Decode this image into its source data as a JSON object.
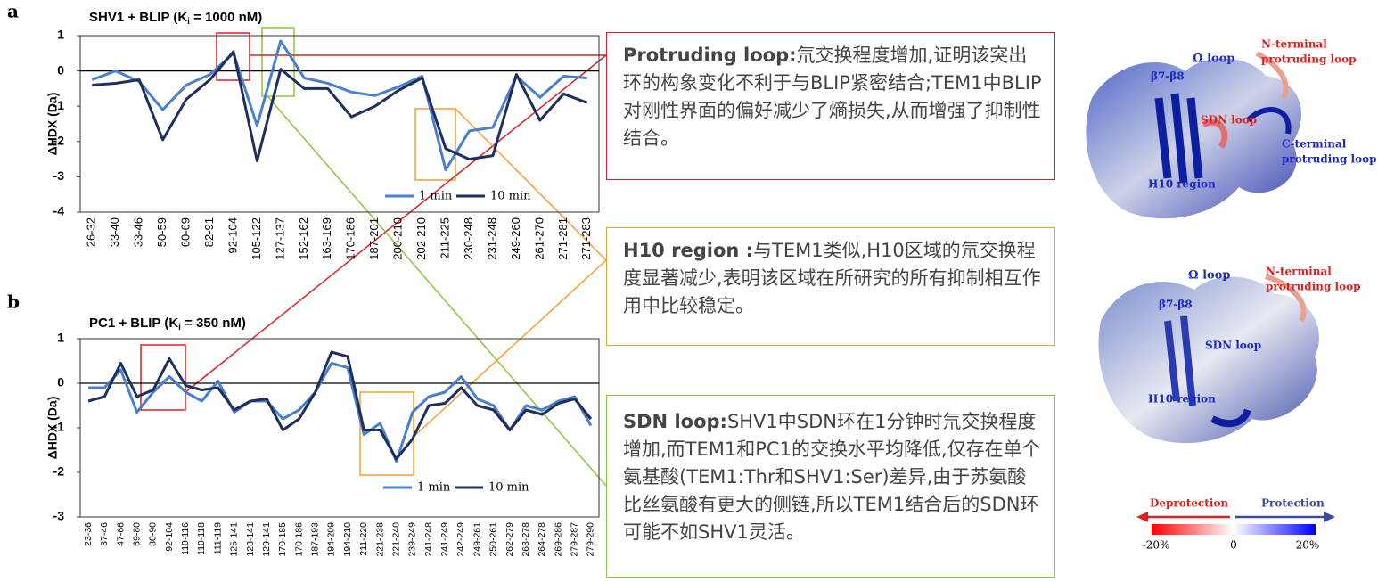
{
  "panels": [
    "a",
    "b"
  ],
  "chart_data": [
    {
      "type": "line",
      "title": "SHV1 + BLIP (K",
      "title_sub": "i",
      "title_end": " = 1000 nM)",
      "y_label": "ΔHDX (Da)",
      "categories": [
        "26-32",
        "33-40",
        "33-46",
        "50-59",
        "60-69",
        "82-91",
        "92-104",
        "105-122",
        "127-137",
        "152-162",
        "163-169",
        "170-186",
        "187-201",
        "200-210",
        "202-210",
        "211-225",
        "230-248",
        "231-248",
        "249-260",
        "261-270",
        "271-281",
        "271-283"
      ],
      "series": [
        {
          "name": "1 min",
          "color": "#4a7fd0",
          "values": [
            -0.25,
            0.0,
            -0.3,
            -1.1,
            -0.4,
            -0.1,
            0.5,
            -1.55,
            0.85,
            -0.2,
            -0.35,
            -0.6,
            -0.7,
            -0.45,
            -0.15,
            -2.8,
            -1.7,
            -1.6,
            -0.15,
            -0.75,
            -0.15,
            -0.2
          ]
        },
        {
          "name": "10 min",
          "color": "#1f2f5c",
          "values": [
            -0.4,
            -0.35,
            -0.25,
            -1.95,
            -0.8,
            -0.25,
            0.55,
            -2.55,
            0.05,
            -0.5,
            -0.5,
            -1.3,
            -1.0,
            -0.55,
            -0.2,
            -2.2,
            -2.5,
            -2.4,
            -0.1,
            -1.4,
            -0.65,
            -0.9
          ]
        }
      ],
      "ylim": [
        -4,
        1
      ],
      "yticks": [
        -4,
        -3,
        -2,
        -1,
        0,
        1
      ]
    },
    {
      "type": "line",
      "title": "PC1 + BLIP (K",
      "title_sub": "i",
      "title_end": " = 350 nM)",
      "y_label": "ΔHDX (Da)",
      "categories": [
        "23-36",
        "37-46",
        "47-66",
        "69-80",
        "80-90",
        "92-104",
        "110-116",
        "110-118",
        "111-119",
        "125-141",
        "128-141",
        "129-141",
        "170-185",
        "170-186",
        "187-193",
        "194-209",
        "194-210",
        "211-220",
        "221-238",
        "221-240",
        "239-249",
        "241-248",
        "241-249",
        "242-249",
        "249-261",
        "250-261",
        "262-279",
        "263-278",
        "264-278",
        "269-286",
        "279-287",
        "279-290"
      ],
      "series": [
        {
          "name": "1 min",
          "color": "#4a7fd0",
          "values": [
            -0.1,
            -0.1,
            0.3,
            -0.65,
            -0.2,
            0.15,
            -0.2,
            -0.4,
            0.05,
            -0.65,
            -0.4,
            -0.4,
            -0.8,
            -0.6,
            -0.2,
            0.45,
            0.35,
            -1.15,
            -0.9,
            -1.75,
            -0.65,
            -0.3,
            -0.2,
            0.15,
            -0.35,
            -0.5,
            -1.05,
            -0.5,
            -0.6,
            -0.4,
            -0.3,
            -0.95
          ]
        },
        {
          "name": "10 min",
          "color": "#1f2f5c",
          "values": [
            -0.4,
            -0.3,
            0.45,
            -0.3,
            -0.15,
            0.55,
            -0.05,
            -0.15,
            -0.1,
            -0.6,
            -0.4,
            -0.35,
            -1.05,
            -0.8,
            -0.2,
            0.7,
            0.6,
            -1.05,
            -1.05,
            -1.7,
            -1.25,
            -0.5,
            -0.45,
            -0.1,
            -0.5,
            -0.6,
            -1.05,
            -0.6,
            -0.7,
            -0.45,
            -0.35,
            -0.8
          ]
        }
      ],
      "ylim": [
        -3,
        1
      ],
      "yticks": [
        -3,
        -2,
        -1,
        0,
        1
      ]
    }
  ],
  "callouts": [
    {
      "heading": "Protruding loop:",
      "text": "氘交换程度增加,证明该突出环的构象变化不利于与BLIP紧密结合;TEM1中BLIP对刚性界面的偏好减少了熵损失,从而增强了抑制性结合。"
    },
    {
      "heading": "H10 region :",
      "text": "与TEM1类似,H10区域的氘交换程度显著减少,表明该区域在所研究的所有抑制相互作用中比较稳定。"
    },
    {
      "heading": "SDN loop:",
      "text": "SHV1中SDN环在1分钟时氘交换程度增加,而TEM1和PC1的交换水平均降低,仅存在单个氨基酸(TEM1:Thr和SHV1:Ser)差异,由于苏氨酸比丝氨酸有更大的侧链,所以TEM1结合后的SDN环可能不如SHV1灵活。"
    }
  ],
  "structures": [
    {
      "omega": "Ω loop",
      "beta": "β7-β8",
      "nterm": [
        "N-terminal",
        "protruding loop"
      ],
      "sdn": "SDN loop",
      "cterm": [
        "C-terminal",
        "protruding loop"
      ],
      "h10": "H10 region"
    },
    {
      "omega": "Ω loop",
      "beta": "β7-β8",
      "nterm": [
        "N-terminal",
        "protruding loop"
      ],
      "sdn": "SDN loop",
      "h10": "H10 region"
    }
  ],
  "scale": {
    "left": "Deprotection",
    "right": "Protection",
    "ticks": [
      "-20%",
      "0",
      "20%"
    ]
  }
}
